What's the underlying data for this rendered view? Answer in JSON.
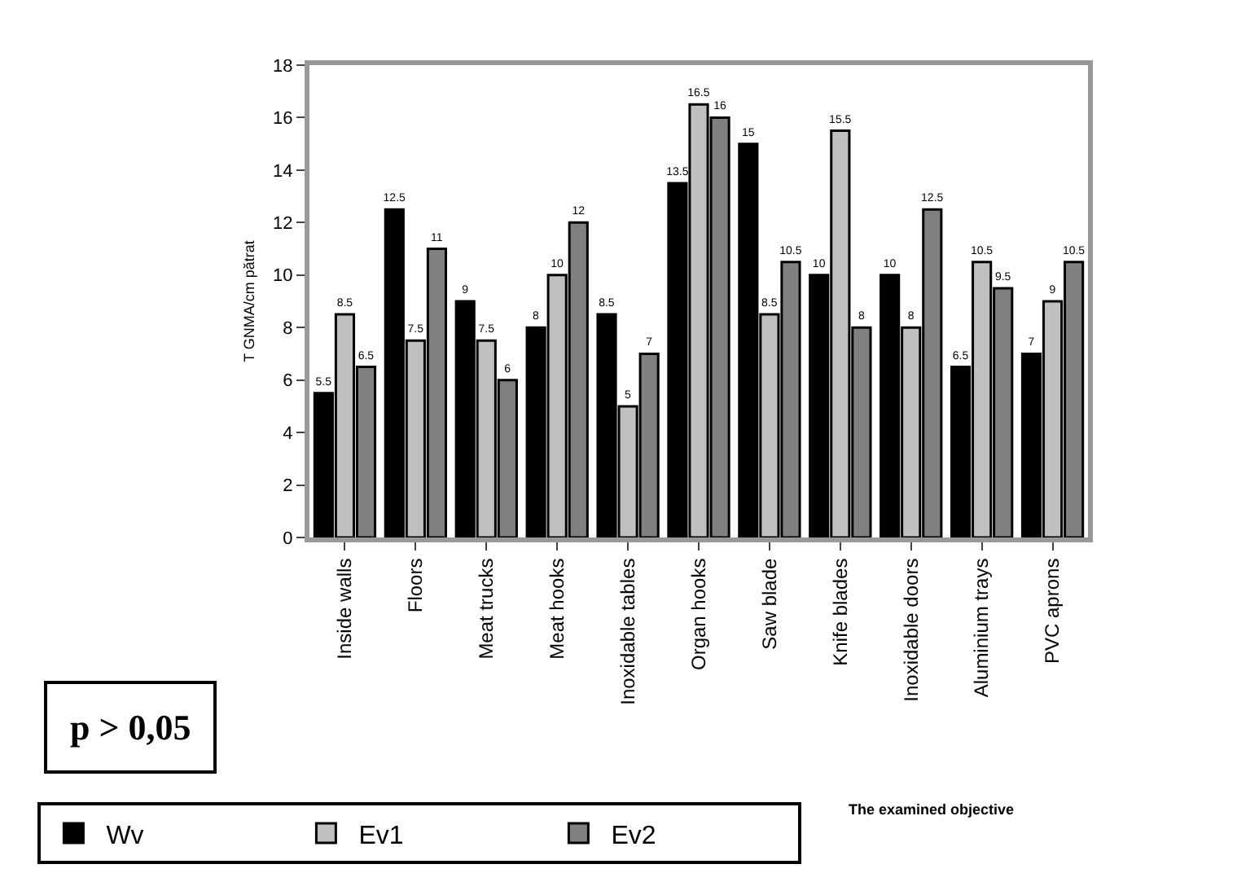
{
  "chart_data": {
    "type": "bar",
    "ylabel": "T GNMA/cm pătrat",
    "categories": [
      "Inside walls",
      "Floors",
      "Meat trucks",
      "Meat hooks",
      "Inoxidable tables",
      "Organ hooks",
      "Saw blade",
      "Knife blades",
      "Inoxidable doors",
      "Aluminium trays",
      "PVC aprons"
    ],
    "series": [
      {
        "name": "Wv",
        "color": "#000000",
        "values": [
          5.5,
          12.5,
          9,
          8,
          8.5,
          13.5,
          15,
          10,
          10,
          6.5,
          7
        ]
      },
      {
        "name": "Ev1",
        "color": "#c0c0c0",
        "values": [
          8.5,
          7.5,
          7.5,
          10,
          5,
          16.5,
          8.5,
          15.5,
          8,
          10.5,
          9
        ]
      },
      {
        "name": "Ev2",
        "color": "#808080",
        "values": [
          6.5,
          11,
          6,
          12,
          7,
          16,
          10.5,
          8,
          12.5,
          9.5,
          10.5
        ]
      }
    ],
    "ylim": [
      0,
      18
    ],
    "yticks": [
      0,
      2,
      4,
      6,
      8,
      10,
      12,
      14,
      16,
      18
    ],
    "legend": "bottom",
    "data_labels": true,
    "annotations": [
      "p > 0,05",
      "The examined objective"
    ]
  }
}
